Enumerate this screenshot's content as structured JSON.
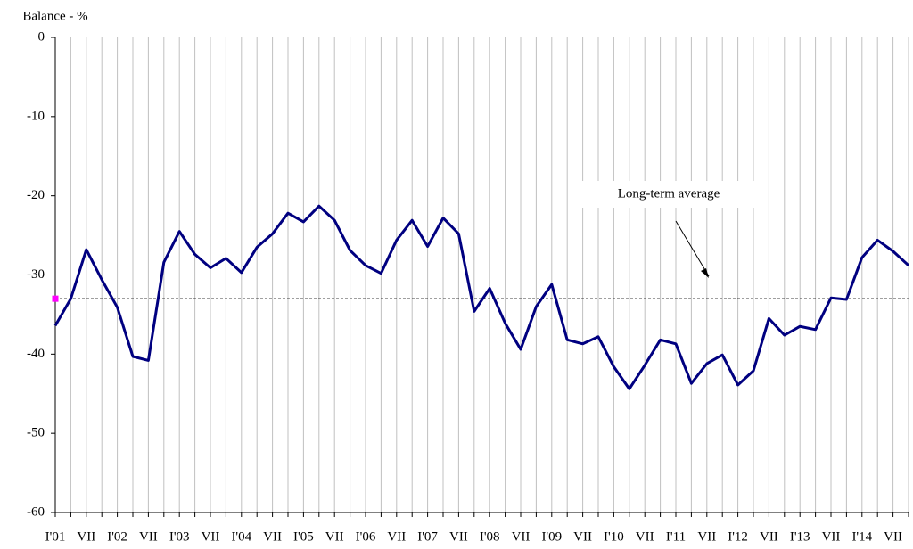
{
  "chart_data": {
    "type": "line",
    "y_axis_label": "Balance - %",
    "categories": [
      "I'01",
      null,
      "VII",
      null,
      "I'02",
      null,
      "VII",
      null,
      "I'03",
      null,
      "VII",
      null,
      "I'04",
      null,
      "VII",
      null,
      "I'05",
      null,
      "VII",
      null,
      "I'06",
      null,
      "VII",
      null,
      "I'07",
      null,
      "VII",
      null,
      "I'08",
      null,
      "VII",
      null,
      "I'09",
      null,
      "VII",
      null,
      "I'10",
      null,
      "VII",
      null,
      "I'11",
      null,
      "VII",
      null,
      "I'12",
      null,
      "VII",
      null,
      "I'13",
      null,
      "VII",
      null,
      "I'14",
      null,
      "VII",
      null
    ],
    "series": [
      {
        "name": "Balance",
        "color": "#000080",
        "values": [
          -36.4,
          -33,
          -26.8,
          -30.6,
          -34.1,
          -40.3,
          -40.8,
          -28.4,
          -24.5,
          -27.4,
          -29.1,
          -27.9,
          -29.7,
          -26.5,
          -24.8,
          -22.2,
          -23.3,
          -21.3,
          -23.1,
          -26.9,
          -28.8,
          -29.8,
          -25.6,
          -23.1,
          -26.4,
          -22.8,
          -24.8,
          -34.6,
          -31.7,
          -36.1,
          -39.4,
          -34,
          -31.2,
          -38.2,
          -38.7,
          -37.8,
          -41.6,
          -44.4,
          -41.4,
          -38.2,
          -38.7,
          -43.7,
          -41.2,
          -40.1,
          -43.9,
          -42.1,
          -35.5,
          -37.6,
          -36.5,
          -36.9,
          -32.9,
          -33.1,
          -27.8,
          -25.6,
          -27,
          -28.8
        ]
      }
    ],
    "average": {
      "label": "Long-term average",
      "value": -33,
      "color": "#ff00ff"
    },
    "ylim": [
      -60,
      0
    ],
    "yticks": [
      0,
      -10,
      -20,
      -30,
      -40,
      -50,
      -60
    ],
    "grid": true
  }
}
